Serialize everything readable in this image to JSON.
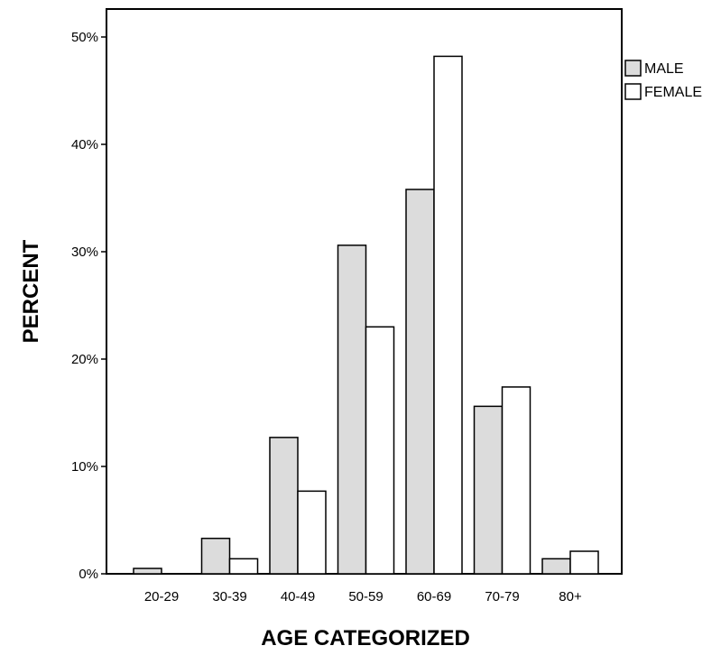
{
  "chart_data": {
    "type": "bar",
    "title": "",
    "xlabel": "AGE CATEGORIZED",
    "ylabel": "PERCENT",
    "categories": [
      "20-29",
      "30-39",
      "40-49",
      "50-59",
      "60-69",
      "70-79",
      "80+"
    ],
    "series": [
      {
        "name": "MALE",
        "color": "#dcdcdc",
        "values": [
          0.5,
          3.3,
          12.7,
          30.6,
          35.8,
          15.6,
          1.4
        ]
      },
      {
        "name": "FEMALE",
        "color": "#ffffff",
        "values": [
          0.0,
          1.4,
          7.7,
          23.0,
          48.2,
          17.4,
          2.1
        ]
      }
    ],
    "ylim": [
      0,
      50
    ],
    "yticks": [
      0,
      10,
      20,
      30,
      40,
      50
    ],
    "ytick_labels": [
      "0%",
      "10%",
      "20%",
      "30%",
      "40%",
      "50%"
    ],
    "grid": false,
    "legend": "top-right"
  }
}
